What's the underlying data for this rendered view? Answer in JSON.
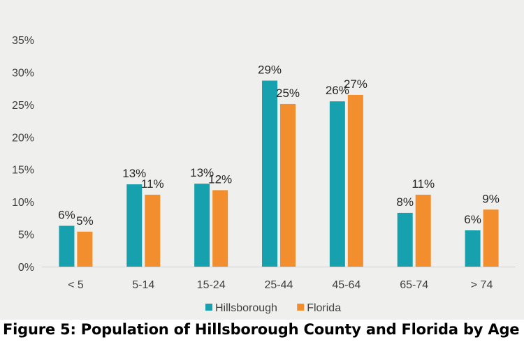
{
  "caption": "Figure 5: Population of Hillsborough County and Florida by Age",
  "chart_data": {
    "type": "bar",
    "categories": [
      "< 5",
      "5-14",
      "15-24",
      "25-44",
      "45-64",
      "65-74",
      "> 74"
    ],
    "series": [
      {
        "name": "Hillsborough",
        "color": "#17a0ad",
        "values": [
          6.3,
          12.7,
          12.8,
          28.7,
          25.5,
          8.3,
          5.6
        ],
        "labels": [
          "6%",
          "13%",
          "13%",
          "29%",
          "26%",
          "8%",
          "6%"
        ]
      },
      {
        "name": "Florida",
        "color": "#f28e2e",
        "values": [
          5.4,
          11.1,
          11.8,
          25.1,
          26.5,
          11.1,
          8.8
        ],
        "labels": [
          "5%",
          "11%",
          "12%",
          "25%",
          "27%",
          "11%",
          "9%"
        ]
      }
    ],
    "yticks": [
      "0%",
      "5%",
      "10%",
      "15%",
      "20%",
      "25%",
      "30%",
      "35%"
    ],
    "ylim": [
      0,
      35
    ],
    "grid": false,
    "legend_position": "bottom",
    "title": "",
    "xlabel": "",
    "ylabel": ""
  }
}
